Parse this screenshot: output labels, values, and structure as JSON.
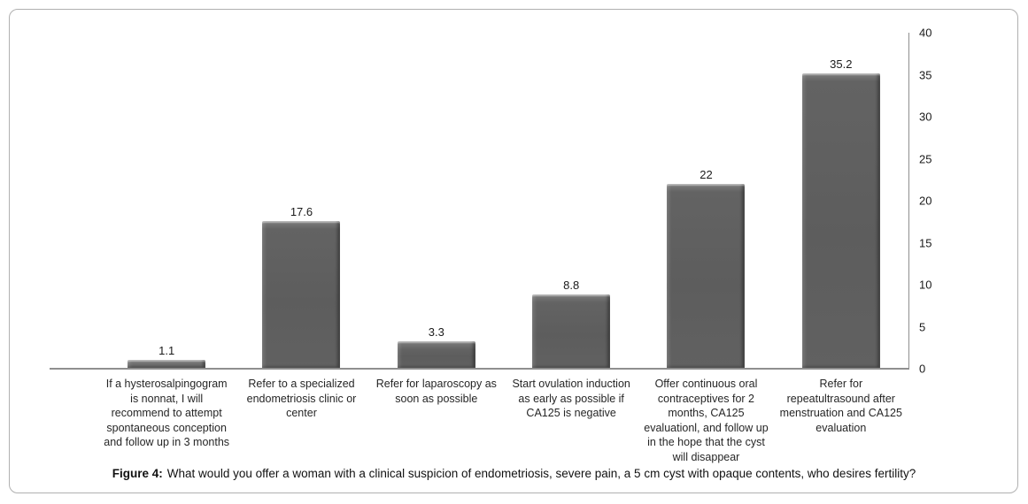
{
  "figure": {
    "caption_label": "Figure 4:",
    "caption_text": "What would you offer a woman with a clinical suspicion of endometriosis, severe pain, a 5 cm cyst with opaque contents, who desires fertility?"
  },
  "chart_data": {
    "type": "bar",
    "title": "",
    "categories": [
      "If a hysterosalpingogram is nonnat, I will recommend to attempt spontaneous conception and follow up in 3 months",
      "Refer to a specialized endometriosis clinic or center",
      "Refer for laparoscopy as soon as possible",
      "Start ovulation induction as early as possible if CA125 is negative",
      "Offer continuous oral contraceptives for 2 months, CA125 evaluationl, and follow up in the hope that the cyst will disappear",
      "Refer for repeatultrasound after menstruation and CA125 evaluation"
    ],
    "values": [
      1.1,
      17.6,
      3.3,
      8.8,
      22,
      35.2
    ],
    "value_labels": [
      "1.1",
      "17.6",
      "3.3",
      "8.8",
      "22",
      "35.2"
    ],
    "xlabel": "",
    "ylabel": "",
    "ylim": [
      0,
      40
    ],
    "yticks": [
      0,
      5,
      10,
      15,
      20,
      25,
      30,
      35,
      40
    ],
    "y_axis_side": "right",
    "grid": false,
    "legend": false,
    "bar_color": "#616161",
    "axis_color": "#8f8f8f",
    "background_color": "#ffffff"
  }
}
